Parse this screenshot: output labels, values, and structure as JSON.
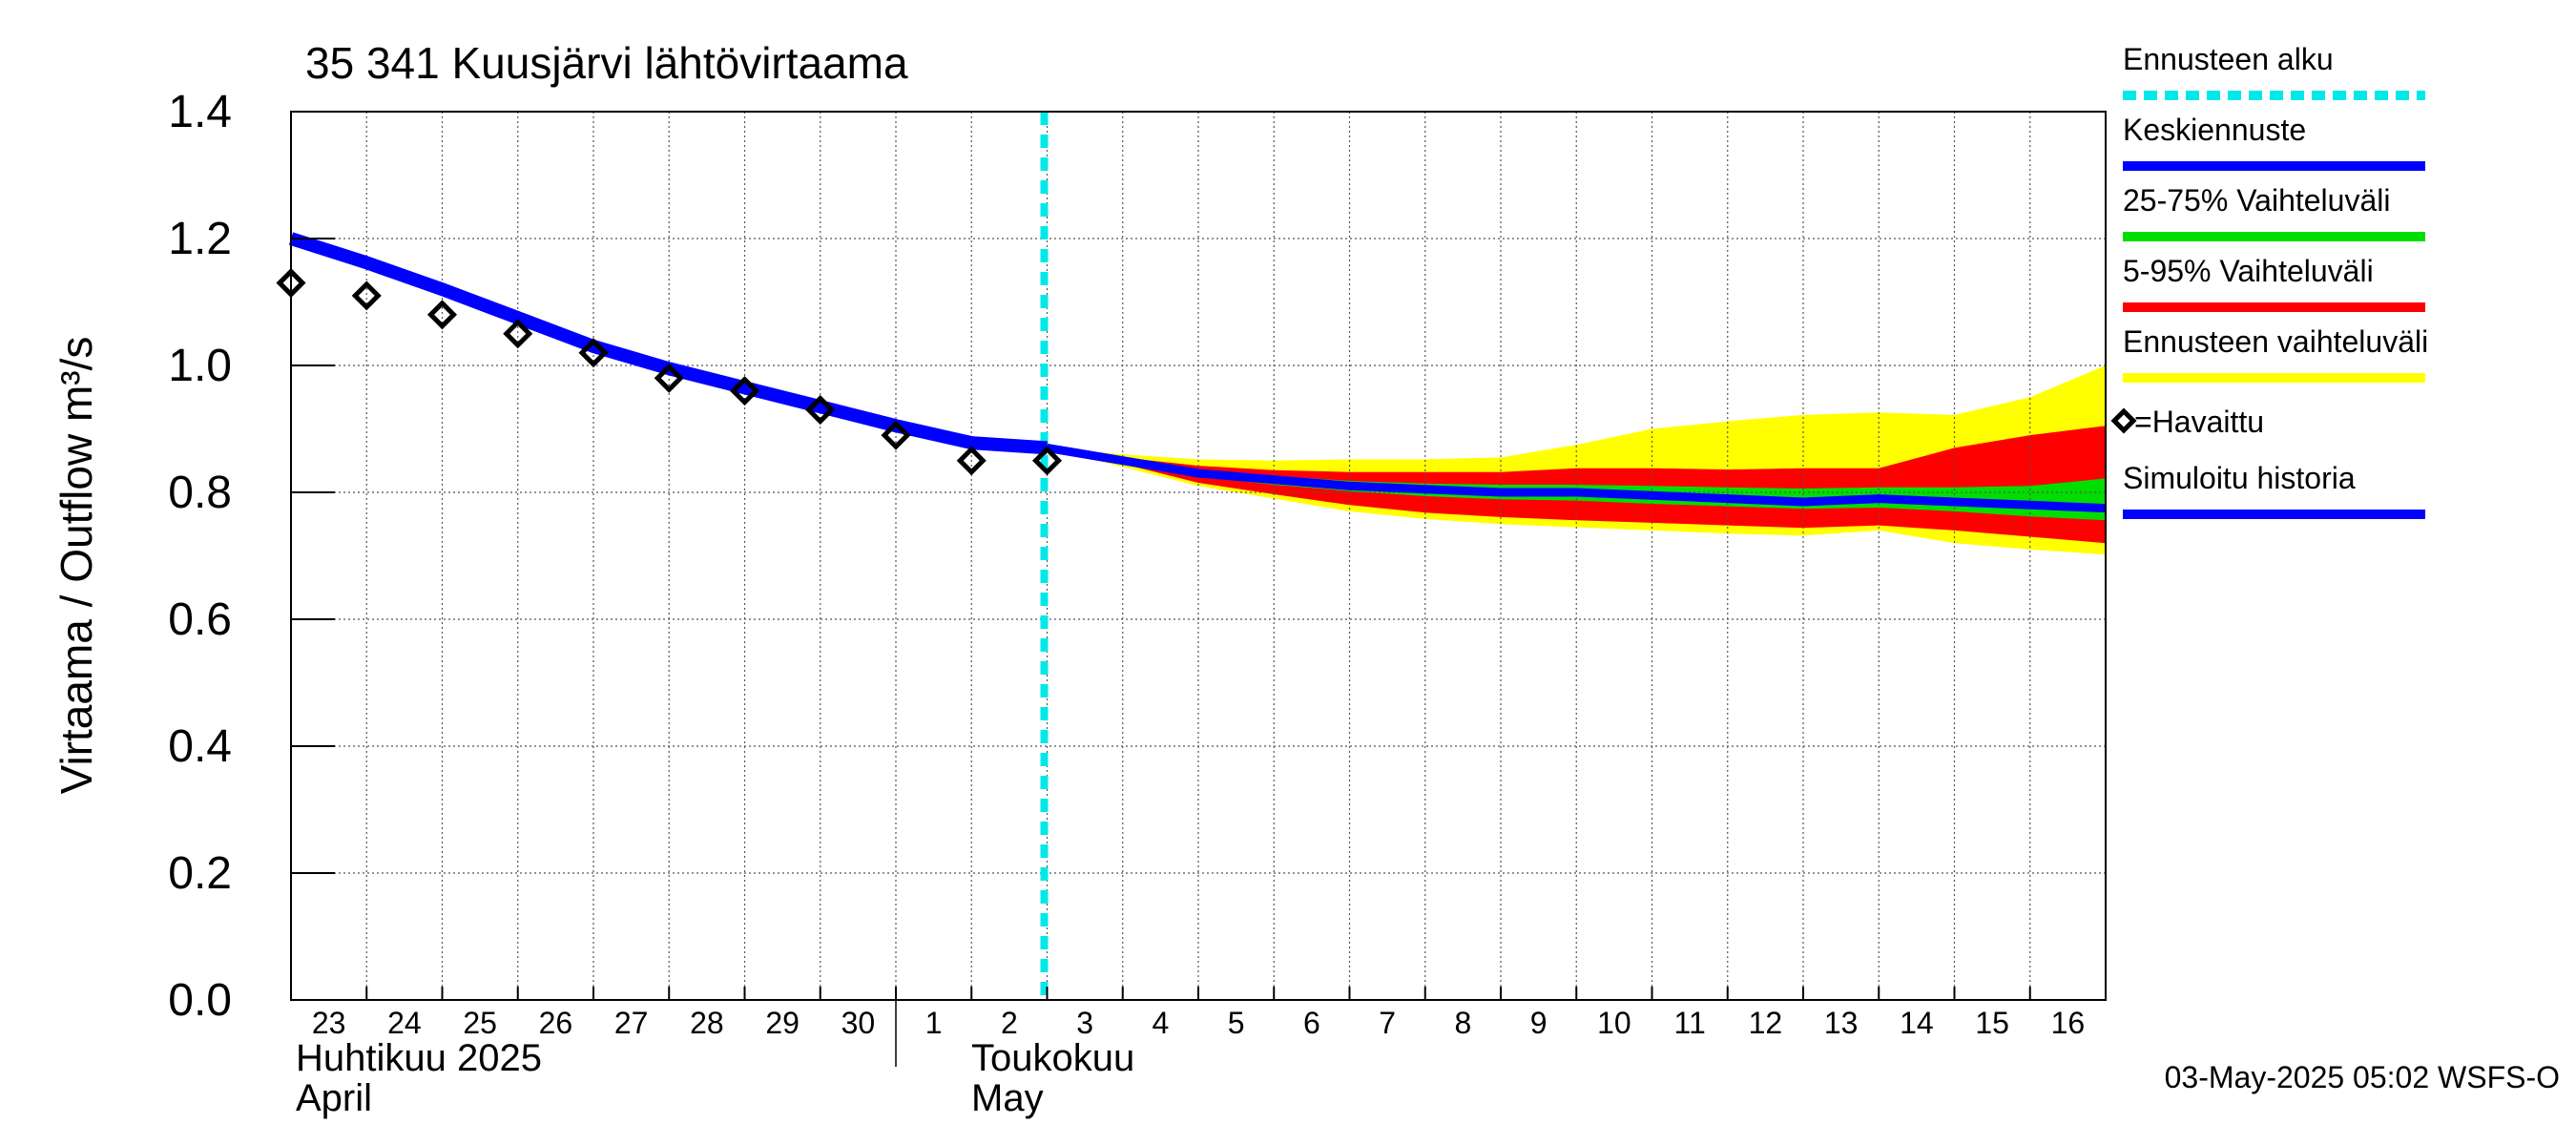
{
  "chart_data": {
    "type": "line",
    "title": "35 341 Kuusjärvi lähtövirtaama",
    "ylabel": "Virtaama / Outflow    m³/s",
    "ylim": [
      0.0,
      1.4
    ],
    "yticks": [
      "0.0",
      "0.2",
      "0.4",
      "0.6",
      "0.8",
      "1.0",
      "1.2",
      "1.4"
    ],
    "x_day_labels": [
      "23",
      "24",
      "25",
      "26",
      "27",
      "28",
      "29",
      "30",
      "1",
      "2",
      "3",
      "4",
      "5",
      "6",
      "7",
      "8",
      "9",
      "10",
      "11",
      "12",
      "13",
      "14",
      "15",
      "16"
    ],
    "month_labels": [
      {
        "fi": "Huhtikuu  2025",
        "en": "April"
      },
      {
        "fi": "Toukokuu",
        "en": "May"
      }
    ],
    "forecast_start_day": 10,
    "observed": {
      "name": "=Havaittu",
      "days": [
        0,
        1,
        2,
        3,
        4,
        5,
        6,
        7,
        8,
        9,
        10
      ],
      "values": [
        1.13,
        1.11,
        1.08,
        1.05,
        1.02,
        0.98,
        0.96,
        0.93,
        0.89,
        0.85,
        0.85
      ]
    },
    "simulated_history": {
      "name": "Simuloitu historia",
      "days": [
        0,
        1,
        2,
        3,
        4,
        5,
        6,
        7,
        8,
        9,
        10
      ],
      "values": [
        1.2,
        1.162,
        1.12,
        1.075,
        1.03,
        0.995,
        0.965,
        0.935,
        0.905,
        0.878,
        0.87
      ]
    },
    "forecast_days": [
      10,
      11,
      12,
      13,
      14,
      15,
      16,
      17,
      18,
      19,
      20,
      21,
      22,
      23,
      24
    ],
    "mean_forecast": {
      "name": "Keskiennuste",
      "values": [
        0.87,
        0.85,
        0.83,
        0.82,
        0.81,
        0.805,
        0.8,
        0.8,
        0.795,
        0.79,
        0.785,
        0.79,
        0.785,
        0.78,
        0.775
      ]
    },
    "band_25_75": {
      "name": "25-75% Vaihteluväli",
      "upper": [
        0.87,
        0.852,
        0.836,
        0.826,
        0.818,
        0.814,
        0.812,
        0.812,
        0.81,
        0.808,
        0.806,
        0.808,
        0.808,
        0.81,
        0.822
      ],
      "lower": [
        0.87,
        0.848,
        0.825,
        0.812,
        0.802,
        0.794,
        0.789,
        0.787,
        0.782,
        0.778,
        0.774,
        0.776,
        0.77,
        0.762,
        0.756
      ]
    },
    "band_5_95": {
      "name": "5-95% Vaihteluväli",
      "upper": [
        0.87,
        0.855,
        0.842,
        0.835,
        0.832,
        0.832,
        0.832,
        0.838,
        0.838,
        0.836,
        0.838,
        0.838,
        0.87,
        0.89,
        0.905
      ],
      "lower": [
        0.87,
        0.845,
        0.815,
        0.797,
        0.78,
        0.768,
        0.761,
        0.756,
        0.752,
        0.748,
        0.744,
        0.748,
        0.74,
        0.73,
        0.72
      ]
    },
    "band_full": {
      "name": "Ennusteen vaihteluväli",
      "upper": [
        0.87,
        0.86,
        0.852,
        0.85,
        0.852,
        0.852,
        0.855,
        0.875,
        0.9,
        0.912,
        0.922,
        0.926,
        0.922,
        0.95,
        1.0
      ],
      "lower": [
        0.87,
        0.84,
        0.81,
        0.79,
        0.77,
        0.758,
        0.75,
        0.745,
        0.74,
        0.735,
        0.732,
        0.74,
        0.72,
        0.71,
        0.702
      ]
    },
    "legend": [
      {
        "label": "Ennusteen alku",
        "color": "#00e8e8",
        "style": "dashed"
      },
      {
        "label": "Keskiennuste",
        "color": "#0000ff",
        "style": "line"
      },
      {
        "label": "25-75% Vaihteluväli",
        "color": "#00dd00",
        "style": "line"
      },
      {
        "label": "5-95% Vaihteluväli",
        "color": "#ff0000",
        "style": "line"
      },
      {
        "label": "Ennusteen vaihteluväli",
        "color": "#ffff00",
        "style": "line"
      },
      {
        "label": "=Havaittu",
        "color": "#000000",
        "style": "marker"
      },
      {
        "label": "Simuloitu historia",
        "color": "#0000ff",
        "style": "line"
      }
    ],
    "legend_position": "right",
    "grid": true
  },
  "footer": {
    "timestamp": "03-May-2025 05:02 WSFS-O"
  }
}
